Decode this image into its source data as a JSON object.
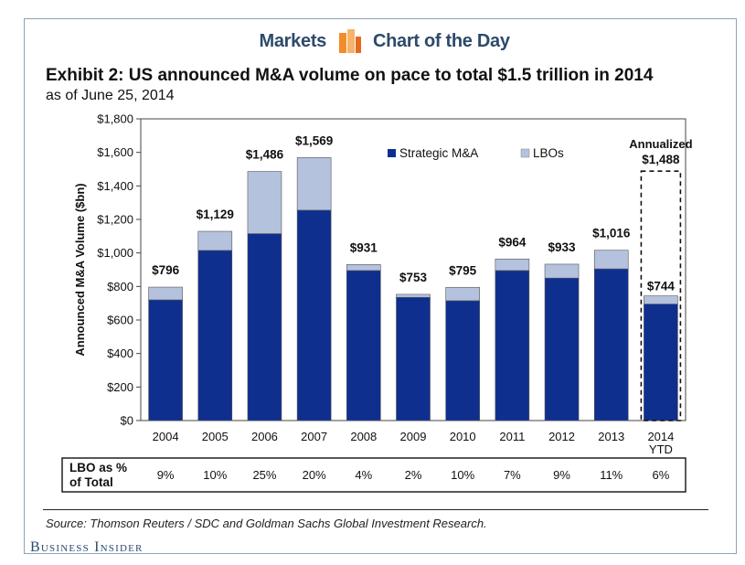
{
  "header": {
    "left_label": "Markets",
    "right_label": "Chart of the Day",
    "icon": "bar-chart-icon",
    "icon_colors": [
      "#f28c28",
      "#f7b26b",
      "#e86a1a"
    ]
  },
  "title": "Exhibit 2: US announced M&A volume on pace to total $1.5 trillion in 2014",
  "subtitle": "as of June 25, 2014",
  "source": "Source: Thomson Reuters / SDC and Goldman Sachs Global Investment Research.",
  "publisher": "Business Insider",
  "chart_data": {
    "type": "bar",
    "stacked": true,
    "categories": [
      "2004",
      "2005",
      "2006",
      "2007",
      "2008",
      "2009",
      "2010",
      "2011",
      "2012",
      "2013",
      "2014\nYTD"
    ],
    "series": [
      {
        "name": "Strategic M&A",
        "color": "#0f2f8f",
        "values": [
          720,
          1015,
          1115,
          1255,
          895,
          735,
          715,
          895,
          850,
          905,
          695
        ]
      },
      {
        "name": "LBOs",
        "color": "#b4c2de",
        "values": [
          76,
          114,
          371,
          314,
          36,
          18,
          80,
          69,
          83,
          111,
          49
        ]
      }
    ],
    "total_labels": [
      "$796",
      "$1,129",
      "$1,486",
      "$1,569",
      "$931",
      "$753",
      "$795",
      "$964",
      "$933",
      "$1,016",
      "$744"
    ],
    "annualized": {
      "label_line1": "Annualized",
      "label_line2": "$1,488",
      "value": 1488,
      "category": "2014\nYTD"
    },
    "ylabel": "Announced M&A Volume ($bn)",
    "ylim": [
      0,
      1800
    ],
    "yticks": [
      0,
      200,
      400,
      600,
      800,
      1000,
      1200,
      1400,
      1600,
      1800
    ],
    "ytick_labels": [
      "$0",
      "$200",
      "$400",
      "$600",
      "$800",
      "$1,000",
      "$1,200",
      "$1,400",
      "$1,600",
      "$1,800"
    ],
    "legend_position": "top-right",
    "lbo_row": {
      "label_line1": "LBO as %",
      "label_line2": "of Total",
      "values": [
        "9%",
        "10%",
        "25%",
        "20%",
        "4%",
        "2%",
        "10%",
        "7%",
        "9%",
        "11%",
        "6%"
      ]
    }
  }
}
